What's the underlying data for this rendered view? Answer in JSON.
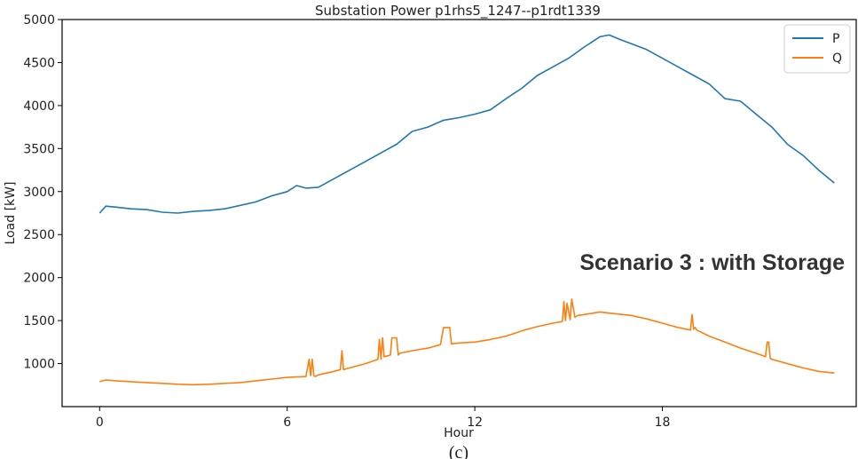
{
  "chart_data": {
    "type": "line",
    "title": "Substation Power p1rhs5_1247--p1rdt1339",
    "xlabel": "Hour",
    "ylabel": "Load [kW]",
    "xlim": [
      -1.2,
      24.2
    ],
    "ylim": [
      500,
      5000
    ],
    "xticks": [
      0,
      6,
      12,
      18
    ],
    "yticks": [
      1000,
      1500,
      2000,
      2500,
      3000,
      3500,
      4000,
      4500,
      5000
    ],
    "grid": false,
    "legend_position": "top-right",
    "annotation": "Scenario 3 : with Storage",
    "caption": "(c)",
    "series": [
      {
        "name": "P",
        "color": "#1f77b4",
        "x": [
          0,
          0.2,
          0.5,
          1,
          1.5,
          2,
          2.5,
          3,
          3.5,
          4,
          4.5,
          5,
          5.5,
          6,
          6.3,
          6.6,
          7,
          7.5,
          8,
          8.5,
          9,
          9.5,
          10,
          10.5,
          11,
          11.5,
          12,
          12.5,
          13,
          13.5,
          14,
          14.5,
          15,
          15.5,
          16,
          16.3,
          16.7,
          17,
          17.5,
          18,
          18.5,
          19,
          19.5,
          20,
          20.5,
          21,
          21.5,
          22,
          22.5,
          23,
          23.5
        ],
        "y": [
          2750,
          2830,
          2820,
          2800,
          2790,
          2760,
          2750,
          2770,
          2780,
          2800,
          2840,
          2880,
          2950,
          3000,
          3070,
          3040,
          3050,
          3150,
          3250,
          3350,
          3450,
          3550,
          3700,
          3750,
          3830,
          3860,
          3900,
          3950,
          4080,
          4200,
          4350,
          4450,
          4550,
          4680,
          4800,
          4820,
          4760,
          4720,
          4650,
          4550,
          4450,
          4350,
          4250,
          4080,
          4050,
          3900,
          3750,
          3550,
          3420,
          3250,
          3100
        ]
      },
      {
        "name": "Q",
        "color": "#ff7f0e",
        "x": [
          0,
          0.2,
          0.5,
          1,
          1.5,
          2,
          2.5,
          3,
          3.5,
          4,
          4.5,
          5,
          5.5,
          6,
          6.6,
          6.7,
          6.75,
          6.8,
          6.85,
          6.9,
          7,
          7.5,
          7.7,
          7.75,
          7.8,
          8,
          8.5,
          8.9,
          8.95,
          9.0,
          9.05,
          9.1,
          9.2,
          9.3,
          9.35,
          9.5,
          9.55,
          9.6,
          10,
          10.5,
          10.9,
          11,
          11.2,
          11.25,
          11.5,
          12,
          12.5,
          13,
          13.5,
          14,
          14.5,
          14.8,
          14.85,
          14.9,
          14.95,
          15.05,
          15.1,
          15.2,
          15.3,
          15.5,
          16,
          16.5,
          17,
          17.5,
          18,
          18.5,
          18.9,
          18.95,
          19.0,
          19.05,
          19.1,
          19.5,
          20,
          20.5,
          21,
          21.3,
          21.35,
          21.4,
          21.45,
          21.5,
          22,
          22.5,
          23,
          23.5
        ],
        "y": [
          790,
          810,
          800,
          790,
          780,
          770,
          760,
          755,
          760,
          770,
          780,
          800,
          820,
          840,
          850,
          1050,
          860,
          1050,
          860,
          850,
          870,
          910,
          930,
          1150,
          930,
          950,
          1000,
          1050,
          1280,
          1050,
          1300,
          1080,
          1090,
          1100,
          1300,
          1300,
          1100,
          1120,
          1150,
          1180,
          1220,
          1420,
          1420,
          1230,
          1240,
          1250,
          1280,
          1320,
          1380,
          1430,
          1470,
          1490,
          1720,
          1500,
          1700,
          1510,
          1750,
          1540,
          1560,
          1570,
          1600,
          1580,
          1560,
          1520,
          1470,
          1420,
          1390,
          1570,
          1400,
          1420,
          1390,
          1320,
          1250,
          1180,
          1120,
          1080,
          1250,
          1250,
          1060,
          1050,
          1000,
          950,
          910,
          890
        ]
      }
    ]
  }
}
